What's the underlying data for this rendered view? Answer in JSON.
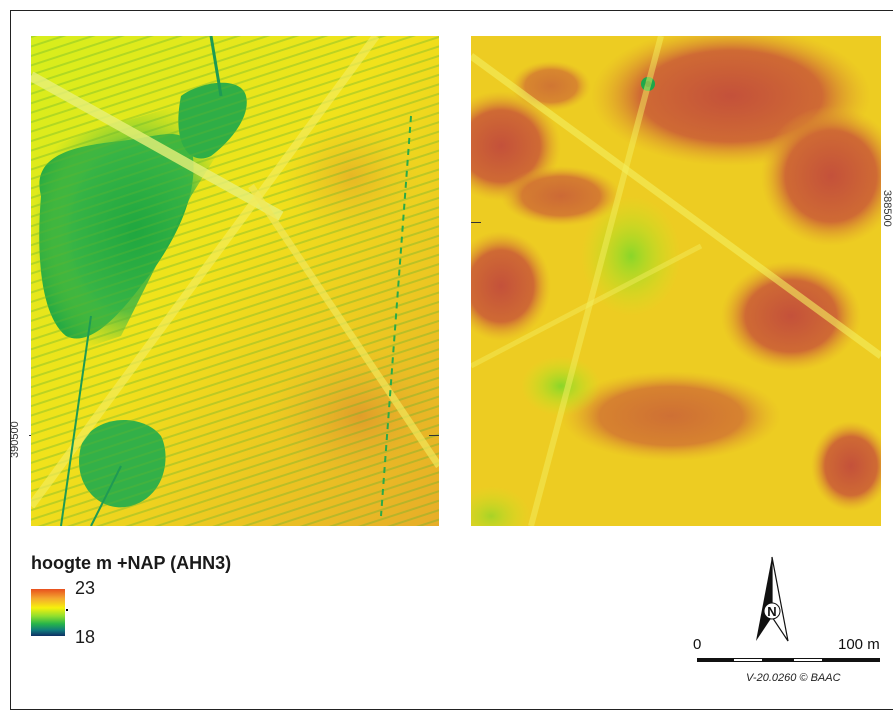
{
  "map": {
    "coord_left": "390500",
    "coord_right": "388500"
  },
  "legend": {
    "title": "hoogte m +NAP (AHN3)",
    "max": "23",
    "min": "18"
  },
  "scale": {
    "zero": "0",
    "end": "100 m"
  },
  "north_arrow": {
    "letter": "N"
  },
  "credit": "V-20.0260 © BAAC",
  "colors": {
    "high": "#c6533a",
    "mid_high": "#e2a92a",
    "mid": "#f0e31a",
    "mid_low": "#a9e01e",
    "low": "#2fb043",
    "lowest": "#0f2e64"
  }
}
